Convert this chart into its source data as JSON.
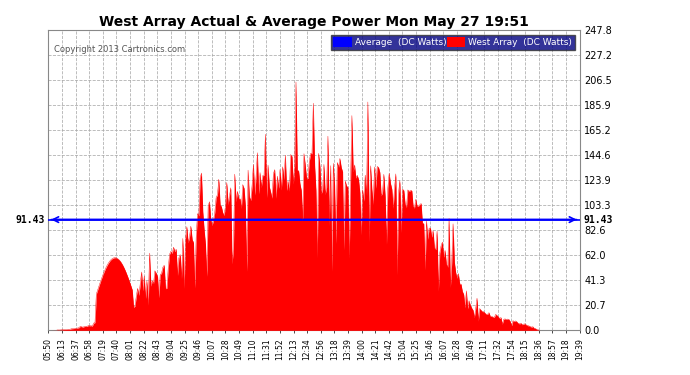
{
  "title": "West Array Actual & Average Power Mon May 27 19:51",
  "copyright": "Copyright 2013 Cartronics.com",
  "average_value": 91.43,
  "ylim": [
    0.0,
    247.8
  ],
  "yticks": [
    0.0,
    20.7,
    41.3,
    62.0,
    82.6,
    103.3,
    123.9,
    144.6,
    165.2,
    185.9,
    206.5,
    227.2,
    247.8
  ],
  "background_color": "#ffffff",
  "plot_bg_color": "#ffffff",
  "bar_color": "#ff0000",
  "avg_line_color": "#0000ff",
  "title_color": "#000000",
  "tick_color": "#000000",
  "grid_color": "#aaaaaa",
  "legend_avg_bg": "#0000ff",
  "legend_west_bg": "#ff0000",
  "x_labels": [
    "05:50",
    "06:13",
    "06:37",
    "06:58",
    "07:19",
    "07:40",
    "08:01",
    "08:22",
    "08:43",
    "09:04",
    "09:25",
    "09:46",
    "10:07",
    "10:28",
    "10:49",
    "11:10",
    "11:31",
    "11:52",
    "12:13",
    "12:34",
    "12:56",
    "13:18",
    "13:39",
    "14:00",
    "14:21",
    "14:42",
    "15:04",
    "15:25",
    "15:46",
    "16:07",
    "16:28",
    "16:49",
    "17:11",
    "17:32",
    "17:54",
    "18:15",
    "18:36",
    "18:57",
    "19:18",
    "19:39"
  ],
  "num_points": 400,
  "seed": 42
}
